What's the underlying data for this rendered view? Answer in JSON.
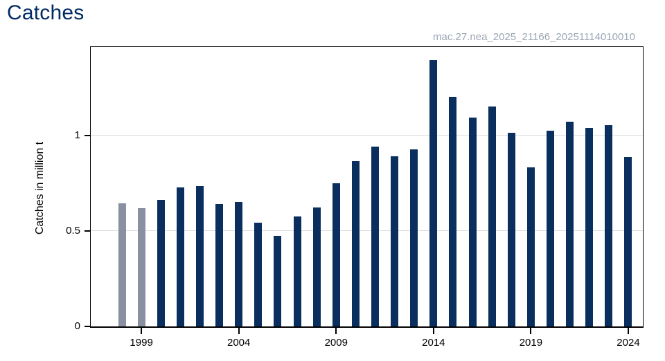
{
  "page": {
    "background": "#ffffff"
  },
  "chart_data": {
    "type": "bar",
    "title": "Catches",
    "subtitle": "mac.27.nea_2025_21166_20251114010010",
    "ylabel": "Catches in million t",
    "xlabel": "",
    "categories": [
      1998,
      1999,
      2000,
      2001,
      2002,
      2003,
      2004,
      2005,
      2006,
      2007,
      2008,
      2009,
      2010,
      2011,
      2012,
      2013,
      2014,
      2015,
      2016,
      2017,
      2018,
      2019,
      2020,
      2021,
      2022,
      2023,
      2024
    ],
    "values": [
      0.643,
      0.618,
      0.661,
      0.726,
      0.735,
      0.64,
      0.65,
      0.543,
      0.474,
      0.576,
      0.623,
      0.748,
      0.866,
      0.941,
      0.889,
      0.928,
      1.395,
      1.2,
      1.092,
      1.152,
      1.015,
      0.832,
      1.023,
      1.07,
      1.037,
      1.052,
      0.887
    ],
    "gray_bar_years": [
      1998,
      1999
    ],
    "yticks": {
      "values": [
        0,
        0.5,
        1
      ],
      "labels": [
        "0",
        "0.5",
        "1"
      ]
    },
    "xticks": {
      "values": [
        1999,
        2004,
        2009,
        2014,
        2019,
        2024
      ],
      "labels": [
        "1999",
        "2004",
        "2009",
        "2014",
        "2019",
        "2024"
      ]
    },
    "ylim": [
      0,
      1.47
    ],
    "xlim_years": [
      1998,
      2024
    ],
    "grid": "horizontal",
    "legend": "none",
    "colors": {
      "bar_default": "#0a2f5f",
      "bar_gray": "#8890a2",
      "grid": "#dcdcdc",
      "axis": "#000000",
      "title": "#002b64",
      "subtitle": "#9ca6b6",
      "tick_text": "#000000"
    }
  }
}
